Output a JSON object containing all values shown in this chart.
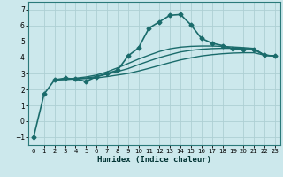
{
  "xlabel": "Humidex (Indice chaleur)",
  "ylabel": "",
  "background_color": "#cce8ec",
  "line_color": "#1a6b6b",
  "grid_color": "#aecfd4",
  "xlim": [
    -0.5,
    23.5
  ],
  "ylim": [
    -1.5,
    7.5
  ],
  "yticks": [
    -1,
    0,
    1,
    2,
    3,
    4,
    5,
    6,
    7
  ],
  "xticks": [
    0,
    1,
    2,
    3,
    4,
    5,
    6,
    7,
    8,
    9,
    10,
    11,
    12,
    13,
    14,
    15,
    16,
    17,
    18,
    19,
    20,
    21,
    22,
    23
  ],
  "lines": [
    {
      "x": [
        0,
        1,
        2,
        3,
        4,
        5,
        6,
        7,
        8,
        9,
        10,
        11,
        12,
        13,
        14,
        15,
        16,
        17,
        18,
        19,
        20,
        21,
        22,
        23
      ],
      "y": [
        -1.0,
        1.7,
        2.6,
        2.7,
        2.65,
        2.5,
        2.8,
        3.0,
        3.2,
        4.1,
        4.6,
        5.85,
        6.25,
        6.65,
        6.7,
        6.05,
        5.2,
        4.9,
        4.75,
        4.55,
        4.5,
        4.5,
        4.15,
        4.1
      ],
      "marker": "D",
      "markersize": 2.5,
      "linewidth": 1.2
    },
    {
      "x": [
        2,
        3,
        4,
        5,
        6,
        7,
        8,
        9,
        10,
        11,
        12,
        13,
        14,
        15,
        16,
        17,
        18,
        19,
        20,
        21,
        22,
        23
      ],
      "y": [
        2.6,
        2.62,
        2.65,
        2.68,
        2.72,
        2.8,
        2.9,
        3.0,
        3.15,
        3.32,
        3.5,
        3.68,
        3.85,
        3.98,
        4.1,
        4.18,
        4.24,
        4.28,
        4.3,
        4.3,
        4.15,
        4.1
      ],
      "marker": null,
      "markersize": 0,
      "linewidth": 1.0
    },
    {
      "x": [
        2,
        3,
        4,
        5,
        6,
        7,
        8,
        9,
        10,
        11,
        12,
        13,
        14,
        15,
        16,
        17,
        18,
        19,
        20,
        21,
        22,
        23
      ],
      "y": [
        2.6,
        2.63,
        2.67,
        2.72,
        2.8,
        2.95,
        3.12,
        3.3,
        3.55,
        3.78,
        4.0,
        4.18,
        4.35,
        4.45,
        4.52,
        4.56,
        4.58,
        4.58,
        4.57,
        4.54,
        4.15,
        4.1
      ],
      "marker": null,
      "markersize": 0,
      "linewidth": 1.0
    },
    {
      "x": [
        2,
        3,
        4,
        5,
        6,
        7,
        8,
        9,
        10,
        11,
        12,
        13,
        14,
        15,
        16,
        17,
        18,
        19,
        20,
        21,
        22,
        23
      ],
      "y": [
        2.6,
        2.65,
        2.7,
        2.78,
        2.9,
        3.1,
        3.35,
        3.62,
        3.9,
        4.15,
        4.38,
        4.55,
        4.65,
        4.7,
        4.72,
        4.72,
        4.7,
        4.66,
        4.62,
        4.57,
        4.15,
        4.1
      ],
      "marker": null,
      "markersize": 0,
      "linewidth": 1.0
    }
  ]
}
